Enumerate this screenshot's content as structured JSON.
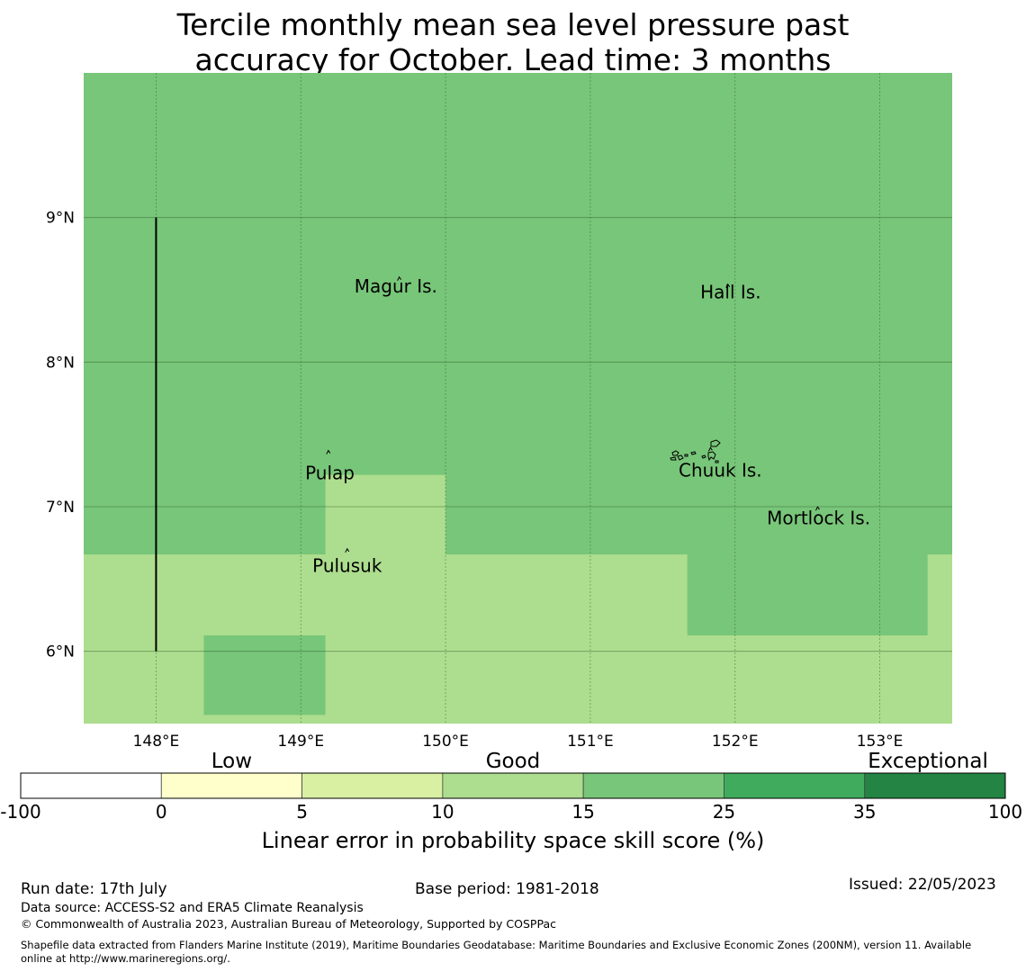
{
  "title": {
    "line1": "Tercile monthly mean sea level pressure past",
    "line2": "accuracy for October. Lead time: 3 months"
  },
  "map": {
    "lon_range": [
      147.5,
      153.5
    ],
    "lat_range": [
      5.5,
      10.0
    ],
    "lon_ticks": [
      {
        "value": 148,
        "label": "148°E"
      },
      {
        "value": 149,
        "label": "149°E"
      },
      {
        "value": 150,
        "label": "150°E"
      },
      {
        "value": 151,
        "label": "151°E"
      },
      {
        "value": 152,
        "label": "152°E"
      },
      {
        "value": 153,
        "label": "153°E"
      }
    ],
    "lat_ticks": [
      {
        "value": 9,
        "label": "9°N"
      },
      {
        "value": 8,
        "label": "8°N"
      },
      {
        "value": 7,
        "label": "7°N"
      },
      {
        "value": 6,
        "label": "6°N"
      }
    ],
    "gridlines": true,
    "skill_regions": [
      {
        "lon": [
          147.5,
          153.5
        ],
        "lat": [
          5.5,
          10.0
        ],
        "category": "15-25",
        "color": "#78c679"
      },
      {
        "lon": [
          147.5,
          153.5
        ],
        "lat": [
          5.5,
          6.67
        ],
        "category": "10-15",
        "color": "#addd8e"
      },
      {
        "lon": [
          149.17,
          150.0
        ],
        "lat": [
          6.67,
          7.22
        ],
        "category": "10-15",
        "color": "#addd8e"
      },
      {
        "lon": [
          151.67,
          153.33
        ],
        "lat": [
          6.11,
          6.67
        ],
        "category": "15-25",
        "color": "#78c679"
      },
      {
        "lon": [
          148.33,
          149.17
        ],
        "lat": [
          5.56,
          6.11
        ],
        "category": "15-25",
        "color": "#78c679"
      }
    ],
    "boundary_line": {
      "lon": 148.0,
      "lat": [
        6.0,
        9.0
      ]
    },
    "places": [
      {
        "name": "Magur Is.",
        "lon": 149.68,
        "lat": 8.57,
        "label_lon": 149.37,
        "label_lat": 8.48
      },
      {
        "name": "Hall Is.",
        "lon": 151.95,
        "lat": 8.52,
        "label_lon": 151.76,
        "label_lat": 8.44
      },
      {
        "name": "Pulap",
        "lon": 149.19,
        "lat": 7.37,
        "label_lon": 149.03,
        "label_lat": 7.19
      },
      {
        "name": "Chuuk Is.",
        "lon": 151.83,
        "lat": 7.39,
        "label_lon": 151.61,
        "label_lat": 7.21
      },
      {
        "name": "Mortlock Is.",
        "lon": 152.57,
        "lat": 6.98,
        "label_lon": 152.22,
        "label_lat": 6.88
      },
      {
        "name": "Pulusuk",
        "lon": 149.32,
        "lat": 6.69,
        "label_lon": 149.08,
        "label_lat": 6.55
      }
    ]
  },
  "colorbar": {
    "categories": [
      {
        "label": "Low",
        "position": 1.5
      },
      {
        "label": "Good",
        "position": 3.5
      },
      {
        "label": "Exceptional",
        "position": 6.45
      }
    ],
    "segments": [
      {
        "color": "#ffffff"
      },
      {
        "color": "#ffffcc"
      },
      {
        "color": "#d9f0a3"
      },
      {
        "color": "#addd8e"
      },
      {
        "color": "#78c679"
      },
      {
        "color": "#41ab5d"
      },
      {
        "color": "#238443"
      }
    ],
    "tick_labels": [
      "-100",
      "0",
      "5",
      "10",
      "15",
      "25",
      "35",
      "100"
    ],
    "label": "Linear error in probability space skill score (%)"
  },
  "footer": {
    "run_date": "Run date: 17th July",
    "base_period": "Base period: 1981-2018",
    "issued": "Issued: 22/05/2023",
    "data_source": "Data source: ACCESS-S2 and ERA5 Climate Reanalysis",
    "copyright": "© Commonwealth of Australia 2023, Australian Bureau of Meteorology, Supported by COSPPac",
    "shapefile_line1": "Shapefile data extracted from Flanders Marine Institute (2019), Maritime Boundaries Geodatabase: Maritime Boundaries and Exclusive Economic Zones (200NM), version 11. Available",
    "shapefile_line2": "online at http://www.marineregions.org/."
  }
}
